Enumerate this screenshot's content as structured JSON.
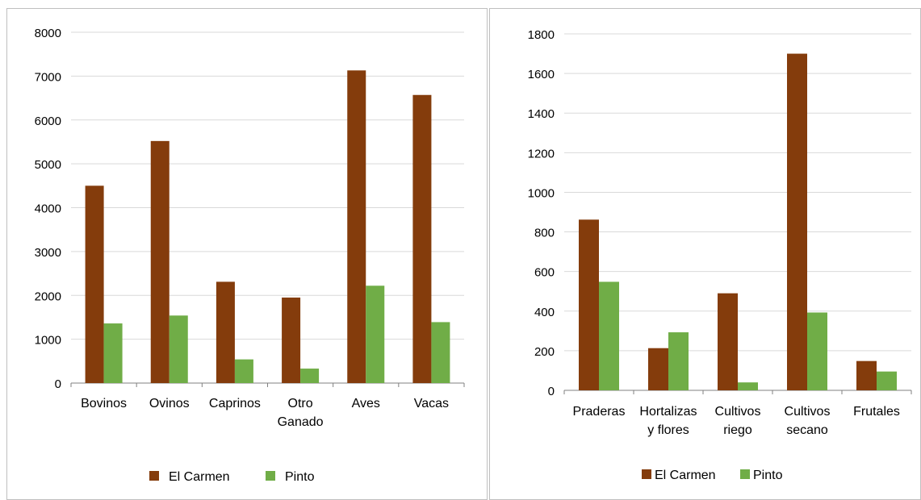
{
  "colors": {
    "el_carmen": "#843C0C",
    "pinto": "#70AD47",
    "grid": "#d9d9d9",
    "axis": "#808080"
  },
  "chart_data": [
    {
      "type": "bar",
      "categories": [
        "Bovinos",
        "Ovinos",
        "Caprinos",
        "Otro Ganado",
        "Aves",
        "Vacas"
      ],
      "series": [
        {
          "name": "El Carmen",
          "values": [
            4500,
            5520,
            2310,
            1950,
            7130,
            6570
          ]
        },
        {
          "name": "Pinto",
          "values": [
            1360,
            1540,
            540,
            330,
            2220,
            1390
          ]
        }
      ],
      "yticks": [
        0,
        1000,
        2000,
        3000,
        4000,
        5000,
        6000,
        7000,
        8000
      ],
      "ylim": [
        0,
        8000
      ],
      "grid": true,
      "legend": "bottom",
      "title": "",
      "xlabel": "",
      "ylabel": ""
    },
    {
      "type": "bar",
      "categories": [
        "Praderas",
        "Hortalizas y flores",
        "Cultivos riego",
        "Cultivos secano",
        "Frutales"
      ],
      "series": [
        {
          "name": "El Carmen",
          "values": [
            862,
            213,
            490,
            1700,
            148
          ]
        },
        {
          "name": "Pinto",
          "values": [
            548,
            293,
            40,
            393,
            95
          ]
        }
      ],
      "yticks": [
        0,
        200,
        400,
        600,
        800,
        1000,
        1200,
        1400,
        1600,
        1800
      ],
      "ylim": [
        0,
        1800
      ],
      "grid": true,
      "legend": "bottom",
      "title": "",
      "xlabel": "",
      "ylabel": ""
    }
  ]
}
